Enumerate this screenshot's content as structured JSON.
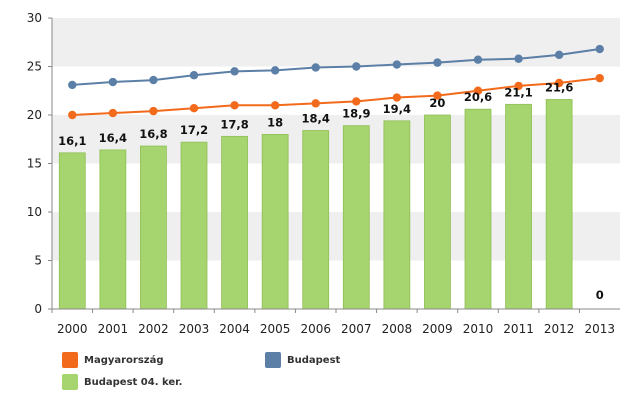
{
  "chart_data": {
    "type": "bar+line",
    "categories": [
      "2000",
      "2001",
      "2002",
      "2003",
      "2004",
      "2005",
      "2006",
      "2007",
      "2008",
      "2009",
      "2010",
      "2011",
      "2012",
      "2013"
    ],
    "ylim": [
      0,
      30
    ],
    "yticks": [
      0,
      5,
      10,
      15,
      20,
      25,
      30
    ],
    "grid": "alternating horizontal bands",
    "legend_position": "bottom",
    "bar_series": {
      "name": "Budapest 04. ker.",
      "color": "#a6d46e",
      "values": [
        16.1,
        16.4,
        16.8,
        17.2,
        17.8,
        18,
        18.4,
        18.9,
        19.4,
        20,
        20.6,
        21.1,
        21.6,
        0
      ],
      "labels": [
        "16,1",
        "16,4",
        "16,8",
        "17,2",
        "17,8",
        "18",
        "18,4",
        "18,9",
        "19,4",
        "20",
        "20,6",
        "21,1",
        "21,6",
        "0"
      ]
    },
    "line_series": [
      {
        "name": "Magyarország",
        "color": "#f26a1b",
        "values": [
          20,
          20.2,
          20.4,
          20.7,
          21,
          21,
          21.2,
          21.4,
          21.8,
          22,
          22.5,
          23,
          23.3,
          23.8
        ]
      },
      {
        "name": "Budapest",
        "color": "#5b7fa6",
        "values": [
          23.1,
          23.4,
          23.6,
          24.1,
          24.5,
          24.6,
          24.9,
          25,
          25.2,
          25.4,
          25.7,
          25.8,
          26.2,
          26.8
        ]
      }
    ]
  }
}
